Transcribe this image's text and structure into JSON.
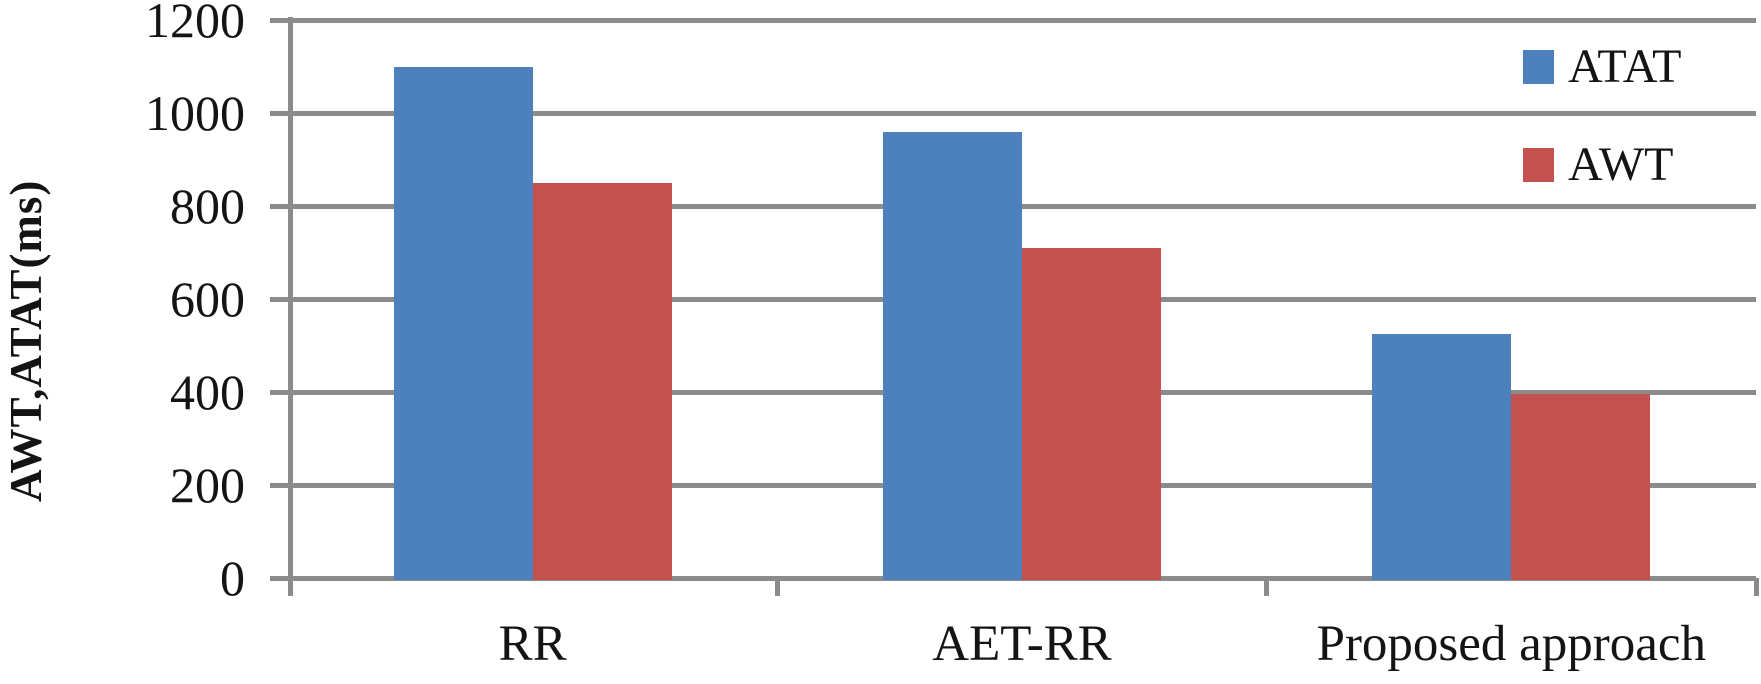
{
  "chart_data": {
    "type": "bar",
    "title": "",
    "xlabel": "",
    "ylabel": "AWT,ATAT(ms)",
    "categories": [
      "RR",
      "AET-RR",
      "Proposed approach"
    ],
    "series": [
      {
        "name": "ATAT",
        "color": "#4d81bd",
        "values": [
          1100,
          960,
          525
        ]
      },
      {
        "name": "AWT",
        "color": "#c4514e",
        "values": [
          850,
          710,
          395
        ]
      }
    ],
    "ylim": [
      0,
      1200
    ],
    "yticks": [
      0,
      200,
      400,
      600,
      800,
      1000,
      1200
    ],
    "grid": true,
    "legend_position": "top-right",
    "colors": {
      "gridline": "#8b8b8b",
      "text": "#141414",
      "background": "#ffffff"
    }
  }
}
